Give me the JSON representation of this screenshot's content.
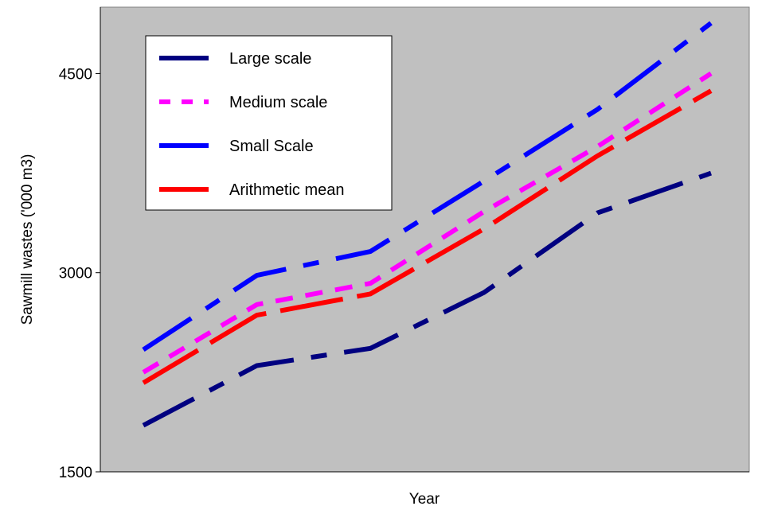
{
  "chart_data": {
    "type": "line",
    "title": "",
    "xlabel": "Year",
    "ylabel": "Sawmill wastes ('000 m3)",
    "ylim": [
      1500,
      5000
    ],
    "yticks": [
      1500,
      3000,
      4500
    ],
    "x": [
      1,
      2,
      3,
      4,
      5,
      6
    ],
    "grid": false,
    "legend": "top-left",
    "series": [
      {
        "name": "Large scale",
        "color": "#000080",
        "dash": "long-dash-dot",
        "values": [
          1850,
          2300,
          2430,
          2850,
          3450,
          3750
        ]
      },
      {
        "name": "Medium scale",
        "color": "#ff00ff",
        "dash": "dash",
        "values": [
          2250,
          2760,
          2920,
          3460,
          3950,
          4500
        ]
      },
      {
        "name": "Small Scale",
        "color": "#0000ff",
        "dash": "long-dash-dot",
        "values": [
          2420,
          2980,
          3160,
          3690,
          4230,
          4880
        ]
      },
      {
        "name": "Arithmetic mean",
        "color": "#ff0000",
        "dash": "long-dash",
        "values": [
          2170,
          2680,
          2840,
          3330,
          3880,
          4370
        ]
      }
    ]
  }
}
